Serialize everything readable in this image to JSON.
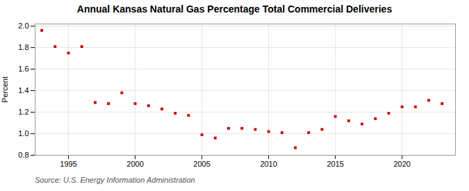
{
  "chart_data": {
    "type": "scatter",
    "title": "Annual Kansas Natural Gas Percentage Total Commercial Deliveries",
    "ylabel": "Percent",
    "annotations": [
      "Source: U.S. Energy Information Administration"
    ],
    "x": [
      1993,
      1994,
      1995,
      1996,
      1997,
      1998,
      1999,
      2000,
      2001,
      2002,
      2003,
      2004,
      2005,
      2006,
      2007,
      2008,
      2009,
      2010,
      2011,
      2012,
      2013,
      2014,
      2015,
      2016,
      2017,
      2018,
      2019,
      2020,
      2021,
      2022,
      2023
    ],
    "values": [
      1.96,
      1.81,
      1.75,
      1.81,
      1.29,
      1.28,
      1.38,
      1.28,
      1.26,
      1.23,
      1.19,
      1.17,
      0.99,
      0.96,
      1.05,
      1.05,
      1.04,
      1.02,
      1.01,
      0.87,
      1.01,
      1.04,
      1.16,
      1.12,
      1.09,
      1.14,
      1.19,
      1.25,
      1.25,
      1.31,
      1.28
    ],
    "color": "#cc0000",
    "marker": "square",
    "xlim": [
      1992.5,
      2024
    ],
    "xticks": [
      1995,
      2000,
      2005,
      2010,
      2015,
      2020
    ],
    "ylim": [
      0.8,
      2.02
    ],
    "yticks": [
      0.8,
      {
        "value": 1.0,
        "label": "1.0"
      },
      1.2,
      1.4,
      1.6,
      1.8,
      {
        "value": 2.0,
        "label": "2.0"
      }
    ],
    "grid": true
  }
}
